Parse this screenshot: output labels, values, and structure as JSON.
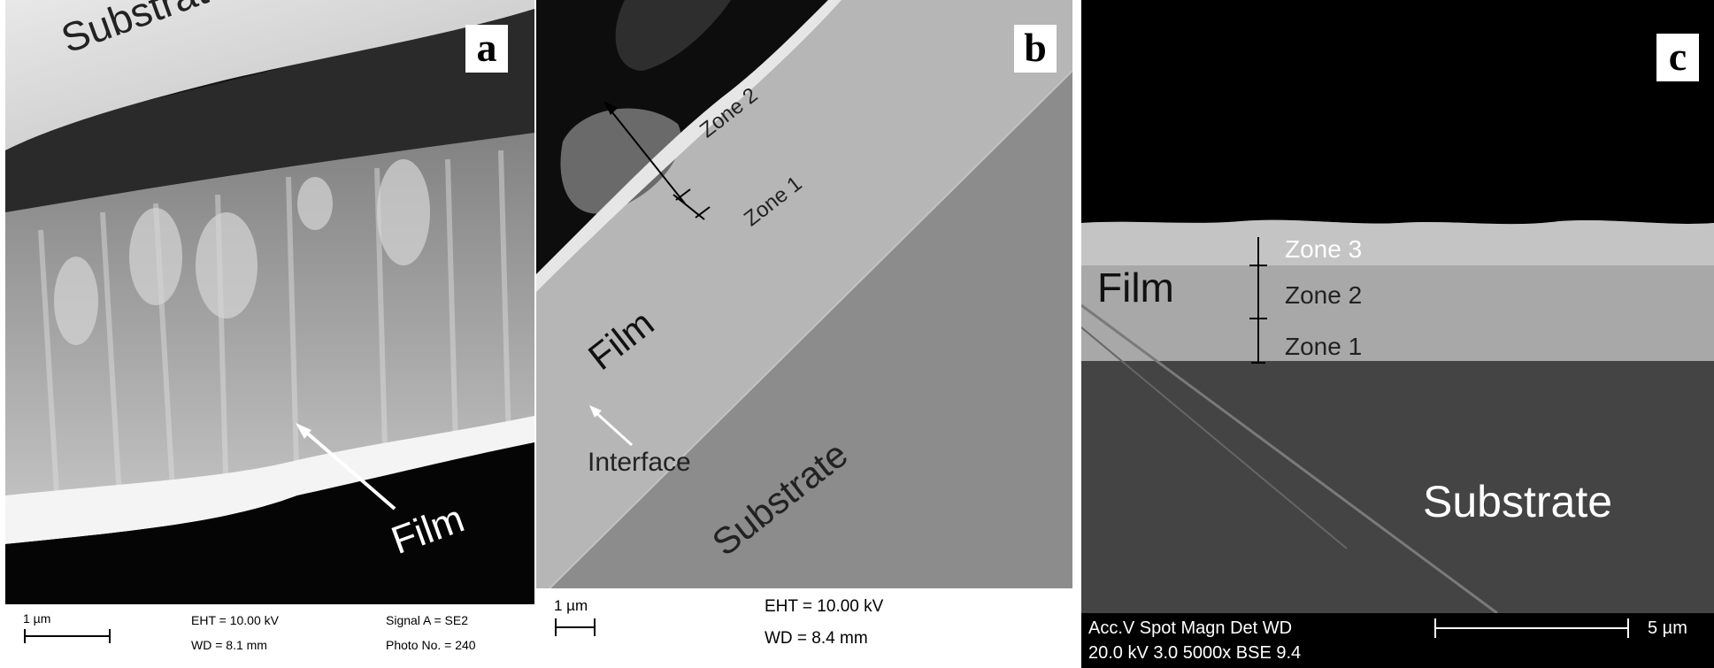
{
  "panels": {
    "a": {
      "letter": "a",
      "substrate_label": "Substrate",
      "film_label": "Film",
      "scale": "1 µm",
      "eht": "EHT = 10.00 kV",
      "wd": "WD =  8.1 mm",
      "signal": "Signal A = SE2",
      "photo": "Photo No. = 240"
    },
    "b": {
      "letter": "b",
      "zone2": "Zone 2",
      "zone1": "Zone 1",
      "film_label": "Film",
      "substrate_label": "Substrate",
      "interface_label": "Interface",
      "scale": "1 µm",
      "eht": "EHT = 10.00 kV",
      "wd": "WD =  8.4 mm"
    },
    "c": {
      "letter": "c",
      "film_label": "Film",
      "zone3": "Zone 3",
      "zone2": "Zone 2",
      "zone1": "Zone 1",
      "substrate_label": "Substrate",
      "acc_header": "Acc.V   Spot  Magn      Det   WD",
      "acc_values": "20.0 kV  3.0    5000x     BSE  9.4",
      "scale": "5 µm"
    }
  },
  "colors": {
    "panel_a_bg": "#101010",
    "panel_b_film": "#b4b4b4",
    "panel_b_substrate": "#8c8c8c",
    "panel_c_substrate": "#444444"
  }
}
